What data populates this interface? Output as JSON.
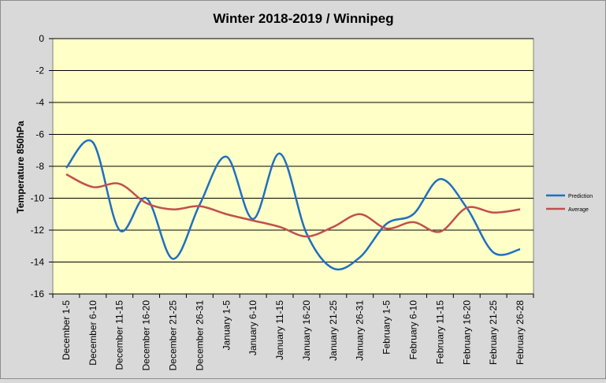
{
  "chart_data": {
    "type": "line",
    "title": "Winter 2018-2019 / Winnipeg",
    "xlabel": "",
    "ylabel": "Temperature 850hPa",
    "ylim": [
      -16,
      0
    ],
    "yticks": [
      0,
      -2,
      -4,
      -6,
      -8,
      -10,
      -12,
      -14,
      -16
    ],
    "grid": true,
    "legend_position": "right",
    "categories": [
      "December 1-5",
      "December 6-10",
      "December 11-15",
      "December 16-20",
      "December 21-25",
      "December 26-31",
      "January 1-5",
      "January 6-10",
      "January 11-15",
      "January 16-20",
      "January 21-25",
      "January 26-31",
      "February 1-5",
      "February 6-10",
      "February 11-15",
      "February 16-20",
      "February 21-25",
      "February 26-28"
    ],
    "series": [
      {
        "name": "Prediction",
        "color": "#1f6fbf",
        "values": [
          -8.1,
          -6.5,
          -12.0,
          -10.0,
          -13.8,
          -10.4,
          -7.4,
          -11.3,
          -7.2,
          -12.2,
          -14.4,
          -13.7,
          -11.6,
          -11.0,
          -8.8,
          -10.6,
          -13.4,
          -13.2
        ]
      },
      {
        "name": "Average",
        "color": "#c0504d",
        "values": [
          -8.5,
          -9.3,
          -9.1,
          -10.3,
          -10.7,
          -10.5,
          -11.0,
          -11.4,
          -11.8,
          -12.4,
          -11.8,
          -11.0,
          -11.9,
          -11.5,
          -12.1,
          -10.6,
          -10.9,
          -10.7
        ]
      }
    ]
  }
}
